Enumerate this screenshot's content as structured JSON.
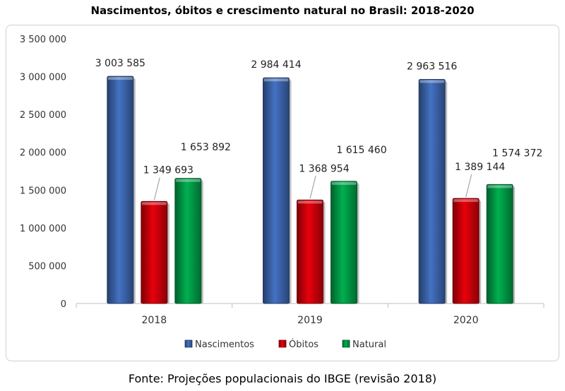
{
  "title": "Nascimentos, óbitos e crescimento natural no Brasil: 2018-2020",
  "source": "Fonte: Projeções populacionais do IBGE (revisão 2018)",
  "chart_data": {
    "type": "bar",
    "title": "Nascimentos, óbitos e crescimento natural no Brasil: 2018-2020",
    "categories": [
      "2018",
      "2019",
      "2020"
    ],
    "series": [
      {
        "name": "Nascimentos",
        "values": [
          3003585,
          2984414,
          2963516
        ],
        "color": "#4472C4",
        "labels": [
          "3 003 585",
          "2 984 414",
          "2 963 516"
        ]
      },
      {
        "name": "Óbitos",
        "values": [
          1349693,
          1368954,
          1389144
        ],
        "color": "#E8000B",
        "labels": [
          "1 349 693",
          "1 368 954",
          "1 389 144"
        ]
      },
      {
        "name": "Natural",
        "values": [
          1653892,
          1615460,
          1574372
        ],
        "color": "#00B050",
        "labels": [
          "1 653 892",
          "1 615 460",
          "1 574 372"
        ]
      }
    ],
    "yticks": [
      "0",
      "500 000",
      "1 000 000",
      "1 500 000",
      "2 000 000",
      "2 500 000",
      "3 000 000",
      "3 500 000"
    ],
    "ylim": [
      0,
      3500000
    ],
    "xlabel": "",
    "ylabel": "",
    "legend": "bottom",
    "grid": false
  }
}
